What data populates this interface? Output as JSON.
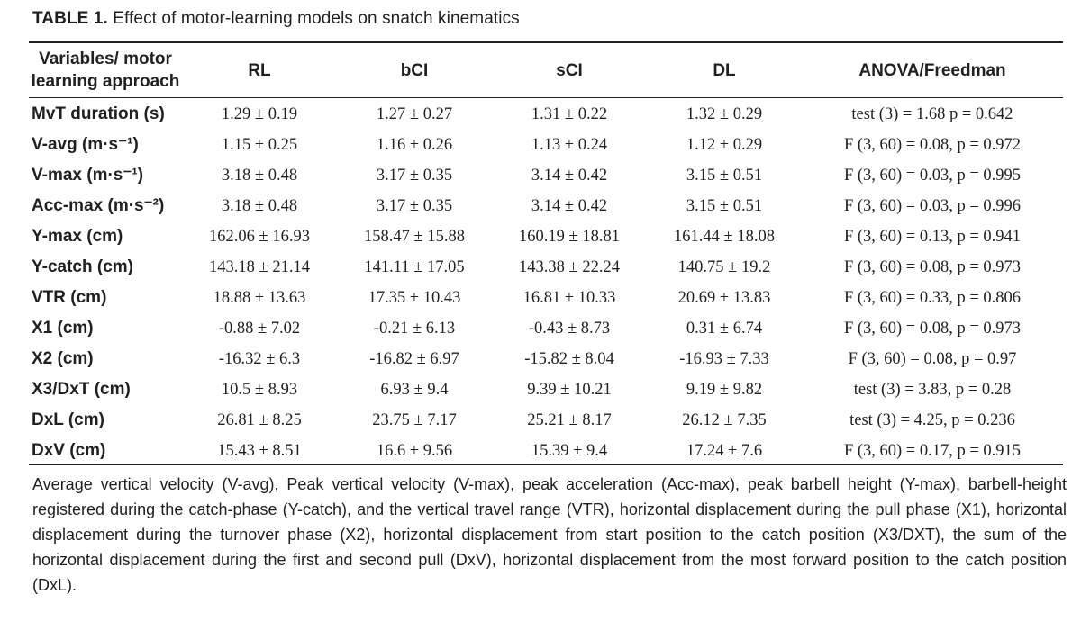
{
  "caption": {
    "label": "TABLE 1.",
    "title": " Effect of motor-learning models on snatch kinematics"
  },
  "table": {
    "headers": [
      "Variables/ motor learning approach",
      "RL",
      "bCI",
      "sCI",
      "DL",
      "ANOVA/Freedman"
    ],
    "rows": [
      [
        "MvT duration (s)",
        "1.29 ± 0.19",
        "1.27 ± 0.27",
        "1.31 ± 0.22",
        "1.32 ± 0.29",
        "test (3) = 1.68 p = 0.642"
      ],
      [
        "V-avg (m·s⁻¹)",
        "1.15 ± 0.25",
        "1.16 ± 0.26",
        "1.13 ± 0.24",
        "1.12 ± 0.29",
        "F (3, 60) = 0.08, p = 0.972"
      ],
      [
        "V-max (m·s⁻¹)",
        "3.18 ± 0.48",
        "3.17 ± 0.35",
        "3.14 ± 0.42",
        "3.15 ± 0.51",
        "F (3, 60) = 0.03, p = 0.995"
      ],
      [
        "Acc-max (m·s⁻²)",
        "3.18 ± 0.48",
        "3.17 ± 0.35",
        "3.14 ± 0.42",
        "3.15 ± 0.51",
        "F (3, 60) = 0.03, p = 0.996"
      ],
      [
        "Y-max (cm)",
        "162.06 ± 16.93",
        "158.47 ± 15.88",
        "160.19 ± 18.81",
        "161.44 ± 18.08",
        "F (3, 60) = 0.13, p = 0.941"
      ],
      [
        "Y-catch (cm)",
        "143.18 ± 21.14",
        "141.11 ± 17.05",
        "143.38 ± 22.24",
        "140.75 ± 19.2",
        "F (3, 60) = 0.08, p = 0.973"
      ],
      [
        "VTR (cm)",
        "18.88 ± 13.63",
        "17.35 ± 10.43",
        "16.81 ± 10.33",
        "20.69 ± 13.83",
        "F (3, 60) = 0.33, p = 0.806"
      ],
      [
        "X1 (cm)",
        "-0.88 ± 7.02",
        "-0.21 ± 6.13",
        "-0.43 ± 8.73",
        "0.31 ± 6.74",
        "F (3, 60) = 0.08, p = 0.973"
      ],
      [
        "X2 (cm)",
        "-16.32 ± 6.3",
        "-16.82 ± 6.97",
        "-15.82 ± 8.04",
        "-16.93 ± 7.33",
        "F (3, 60) = 0.08, p = 0.97"
      ],
      [
        "X3/DxT (cm)",
        "10.5 ± 8.93",
        "6.93 ± 9.4",
        "9.39 ± 10.21",
        "9.19 ± 9.82",
        "test (3) = 3.83, p = 0.28"
      ],
      [
        "DxL (cm)",
        "26.81 ± 8.25",
        "23.75 ± 7.17",
        "25.21 ± 8.17",
        "26.12 ± 7.35",
        "test (3) = 4.25, p = 0.236"
      ],
      [
        "DxV (cm)",
        "15.43 ± 8.51",
        "16.6 ± 9.56",
        "15.39 ± 9.4",
        "17.24 ± 7.6",
        "F (3, 60) = 0.17, p = 0.915"
      ]
    ]
  },
  "footnote": "Average vertical velocity (V-avg), Peak vertical velocity (V-max), peak acceleration (Acc-max), peak barbell height (Y-max), barbell-height registered during the catch-phase (Y-catch), and the vertical travel range (VTR), horizontal displacement during the pull phase (X1), horizontal displacement during the turnover phase (X2), horizontal displacement from start position to the catch position (X3/DXT), the sum of the horizontal displacement during the first and second pull (DxV), horizontal displacement from the most forward position to the catch position (DxL)."
}
